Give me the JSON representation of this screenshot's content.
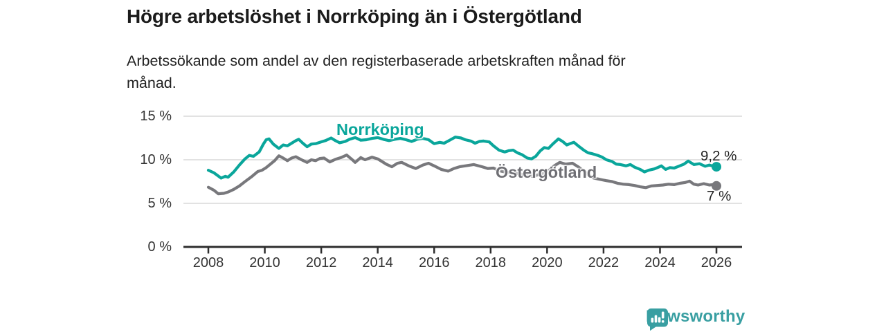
{
  "header": {
    "title": "Högre arbetslöshet i Norrköping än i Östergötland",
    "subtitle": "Arbetssökande som andel av den registerbaserade arbetskraften månad för\nmånad."
  },
  "chart_data": {
    "type": "line",
    "title": "Högre arbetslöshet i Norrköping än i Östergötland",
    "subtitle": "Arbetssökande som andel av den registerbaserade arbetskraften månad för månad.",
    "xlabel": "",
    "ylabel": "",
    "unit": "%",
    "grid": "horizontal",
    "legend_position": "inline-labels",
    "xlim": [
      2007.1,
      2026.9
    ],
    "ylim": [
      0,
      15.8
    ],
    "y_ticks": [
      0,
      5,
      10,
      15
    ],
    "y_tick_labels": [
      "0 %",
      "5 %",
      "10 %",
      "15 %"
    ],
    "x_ticks": [
      2008,
      2010,
      2012,
      2014,
      2016,
      2018,
      2020,
      2022,
      2024,
      2026
    ],
    "colors": {
      "norrkoping": "#0aa69b",
      "ostergotland": "#78787c",
      "gridline": "#d9d9d9",
      "axis": "#2e2e2e"
    },
    "series": [
      {
        "name": "Norrköping",
        "color": "#0aa69b",
        "end_label": "9,2 %",
        "end_value": 9.2,
        "points": [
          [
            2008.0,
            8.8
          ],
          [
            2008.2,
            8.5
          ],
          [
            2008.45,
            7.9
          ],
          [
            2008.6,
            8.1
          ],
          [
            2008.7,
            8.0
          ],
          [
            2008.9,
            8.6
          ],
          [
            2009.1,
            9.4
          ],
          [
            2009.3,
            10.1
          ],
          [
            2009.45,
            10.5
          ],
          [
            2009.6,
            10.4
          ],
          [
            2009.8,
            10.9
          ],
          [
            2009.95,
            11.8
          ],
          [
            2010.05,
            12.3
          ],
          [
            2010.15,
            12.4
          ],
          [
            2010.3,
            11.8
          ],
          [
            2010.5,
            11.3
          ],
          [
            2010.65,
            11.7
          ],
          [
            2010.8,
            11.6
          ],
          [
            2010.95,
            11.9
          ],
          [
            2011.1,
            12.2
          ],
          [
            2011.2,
            12.35
          ],
          [
            2011.35,
            11.9
          ],
          [
            2011.5,
            11.5
          ],
          [
            2011.65,
            11.8
          ],
          [
            2011.8,
            11.85
          ],
          [
            2011.95,
            12.0
          ],
          [
            2012.15,
            12.2
          ],
          [
            2012.35,
            12.5
          ],
          [
            2012.5,
            12.2
          ],
          [
            2012.65,
            11.95
          ],
          [
            2012.85,
            12.1
          ],
          [
            2013.0,
            12.35
          ],
          [
            2013.2,
            12.55
          ],
          [
            2013.4,
            12.25
          ],
          [
            2013.6,
            12.3
          ],
          [
            2013.8,
            12.45
          ],
          [
            2014.0,
            12.55
          ],
          [
            2014.2,
            12.35
          ],
          [
            2014.4,
            12.2
          ],
          [
            2014.6,
            12.35
          ],
          [
            2014.8,
            12.45
          ],
          [
            2015.0,
            12.3
          ],
          [
            2015.2,
            12.1
          ],
          [
            2015.4,
            12.35
          ],
          [
            2015.6,
            12.45
          ],
          [
            2015.8,
            12.3
          ],
          [
            2016.0,
            11.85
          ],
          [
            2016.2,
            12.0
          ],
          [
            2016.35,
            11.9
          ],
          [
            2016.55,
            12.25
          ],
          [
            2016.75,
            12.6
          ],
          [
            2016.95,
            12.5
          ],
          [
            2017.1,
            12.3
          ],
          [
            2017.3,
            12.15
          ],
          [
            2017.45,
            11.9
          ],
          [
            2017.6,
            12.1
          ],
          [
            2017.75,
            12.15
          ],
          [
            2017.95,
            12.05
          ],
          [
            2018.1,
            11.6
          ],
          [
            2018.3,
            11.1
          ],
          [
            2018.5,
            10.9
          ],
          [
            2018.65,
            11.05
          ],
          [
            2018.8,
            11.1
          ],
          [
            2018.95,
            10.8
          ],
          [
            2019.1,
            10.6
          ],
          [
            2019.3,
            10.2
          ],
          [
            2019.45,
            10.1
          ],
          [
            2019.6,
            10.4
          ],
          [
            2019.75,
            11.0
          ],
          [
            2019.9,
            11.4
          ],
          [
            2020.05,
            11.3
          ],
          [
            2020.2,
            11.8
          ],
          [
            2020.4,
            12.4
          ],
          [
            2020.55,
            12.1
          ],
          [
            2020.7,
            11.7
          ],
          [
            2020.85,
            11.9
          ],
          [
            2020.95,
            12.0
          ],
          [
            2021.1,
            11.6
          ],
          [
            2021.3,
            11.1
          ],
          [
            2021.45,
            10.8
          ],
          [
            2021.6,
            10.7
          ],
          [
            2021.8,
            10.5
          ],
          [
            2021.95,
            10.3
          ],
          [
            2022.1,
            10.0
          ],
          [
            2022.3,
            9.8
          ],
          [
            2022.45,
            9.5
          ],
          [
            2022.6,
            9.45
          ],
          [
            2022.8,
            9.3
          ],
          [
            2022.95,
            9.45
          ],
          [
            2023.1,
            9.15
          ],
          [
            2023.3,
            8.9
          ],
          [
            2023.45,
            8.6
          ],
          [
            2023.6,
            8.8
          ],
          [
            2023.8,
            8.95
          ],
          [
            2023.95,
            9.15
          ],
          [
            2024.05,
            9.3
          ],
          [
            2024.2,
            8.9
          ],
          [
            2024.35,
            9.1
          ],
          [
            2024.5,
            9.05
          ],
          [
            2024.7,
            9.3
          ],
          [
            2024.85,
            9.5
          ],
          [
            2025.0,
            9.85
          ],
          [
            2025.2,
            9.45
          ],
          [
            2025.4,
            9.55
          ],
          [
            2025.6,
            9.25
          ],
          [
            2025.75,
            9.4
          ],
          [
            2025.9,
            9.25
          ],
          [
            2026.0,
            9.2
          ]
        ]
      },
      {
        "name": "Östergötland",
        "color": "#78787c",
        "end_label": "7 %",
        "end_value": 7.0,
        "points": [
          [
            2008.0,
            6.85
          ],
          [
            2008.2,
            6.5
          ],
          [
            2008.35,
            6.1
          ],
          [
            2008.55,
            6.15
          ],
          [
            2008.7,
            6.3
          ],
          [
            2008.9,
            6.6
          ],
          [
            2009.1,
            7.0
          ],
          [
            2009.3,
            7.5
          ],
          [
            2009.55,
            8.1
          ],
          [
            2009.75,
            8.65
          ],
          [
            2009.9,
            8.8
          ],
          [
            2010.05,
            9.1
          ],
          [
            2010.2,
            9.5
          ],
          [
            2010.35,
            9.9
          ],
          [
            2010.5,
            10.45
          ],
          [
            2010.65,
            10.2
          ],
          [
            2010.8,
            9.9
          ],
          [
            2010.95,
            10.2
          ],
          [
            2011.1,
            10.35
          ],
          [
            2011.3,
            10.0
          ],
          [
            2011.5,
            9.7
          ],
          [
            2011.65,
            10.0
          ],
          [
            2011.8,
            9.9
          ],
          [
            2011.95,
            10.15
          ],
          [
            2012.1,
            10.2
          ],
          [
            2012.3,
            9.75
          ],
          [
            2012.5,
            10.05
          ],
          [
            2012.7,
            10.25
          ],
          [
            2012.9,
            10.55
          ],
          [
            2013.1,
            10.0
          ],
          [
            2013.2,
            9.7
          ],
          [
            2013.4,
            10.25
          ],
          [
            2013.55,
            10.0
          ],
          [
            2013.8,
            10.3
          ],
          [
            2014.0,
            10.1
          ],
          [
            2014.3,
            9.5
          ],
          [
            2014.5,
            9.2
          ],
          [
            2014.7,
            9.6
          ],
          [
            2014.85,
            9.7
          ],
          [
            2015.1,
            9.3
          ],
          [
            2015.35,
            9.0
          ],
          [
            2015.6,
            9.4
          ],
          [
            2015.8,
            9.6
          ],
          [
            2016.0,
            9.3
          ],
          [
            2016.25,
            8.9
          ],
          [
            2016.5,
            8.7
          ],
          [
            2016.7,
            9.0
          ],
          [
            2016.9,
            9.2
          ],
          [
            2017.1,
            9.3
          ],
          [
            2017.4,
            9.45
          ],
          [
            2017.7,
            9.2
          ],
          [
            2017.9,
            9.0
          ],
          [
            2018.1,
            9.05
          ],
          [
            2018.3,
            8.75
          ],
          [
            2018.5,
            8.6
          ],
          [
            2018.75,
            8.5
          ],
          [
            2019.0,
            8.4
          ],
          [
            2019.3,
            8.2
          ],
          [
            2019.5,
            8.1
          ],
          [
            2019.8,
            8.4
          ],
          [
            2020.0,
            8.6
          ],
          [
            2020.25,
            9.3
          ],
          [
            2020.45,
            9.7
          ],
          [
            2020.65,
            9.5
          ],
          [
            2020.9,
            9.6
          ],
          [
            2021.1,
            9.2
          ],
          [
            2021.3,
            8.7
          ],
          [
            2021.5,
            8.2
          ],
          [
            2021.65,
            7.9
          ],
          [
            2021.8,
            7.8
          ],
          [
            2021.95,
            7.7
          ],
          [
            2022.1,
            7.6
          ],
          [
            2022.3,
            7.5
          ],
          [
            2022.5,
            7.3
          ],
          [
            2022.7,
            7.2
          ],
          [
            2022.9,
            7.15
          ],
          [
            2023.1,
            7.05
          ],
          [
            2023.3,
            6.9
          ],
          [
            2023.5,
            6.8
          ],
          [
            2023.7,
            7.0
          ],
          [
            2023.9,
            7.05
          ],
          [
            2024.1,
            7.1
          ],
          [
            2024.3,
            7.2
          ],
          [
            2024.5,
            7.15
          ],
          [
            2024.7,
            7.3
          ],
          [
            2024.9,
            7.4
          ],
          [
            2025.05,
            7.55
          ],
          [
            2025.2,
            7.2
          ],
          [
            2025.35,
            7.1
          ],
          [
            2025.55,
            7.25
          ],
          [
            2025.75,
            7.1
          ],
          [
            2025.9,
            7.15
          ],
          [
            2026.0,
            7.0
          ]
        ]
      }
    ]
  },
  "footer": {
    "brand": "Newsworthy",
    "brand_color": "#399fa2",
    "logo_icon": "bar-chart-speech-bubble-icon"
  }
}
